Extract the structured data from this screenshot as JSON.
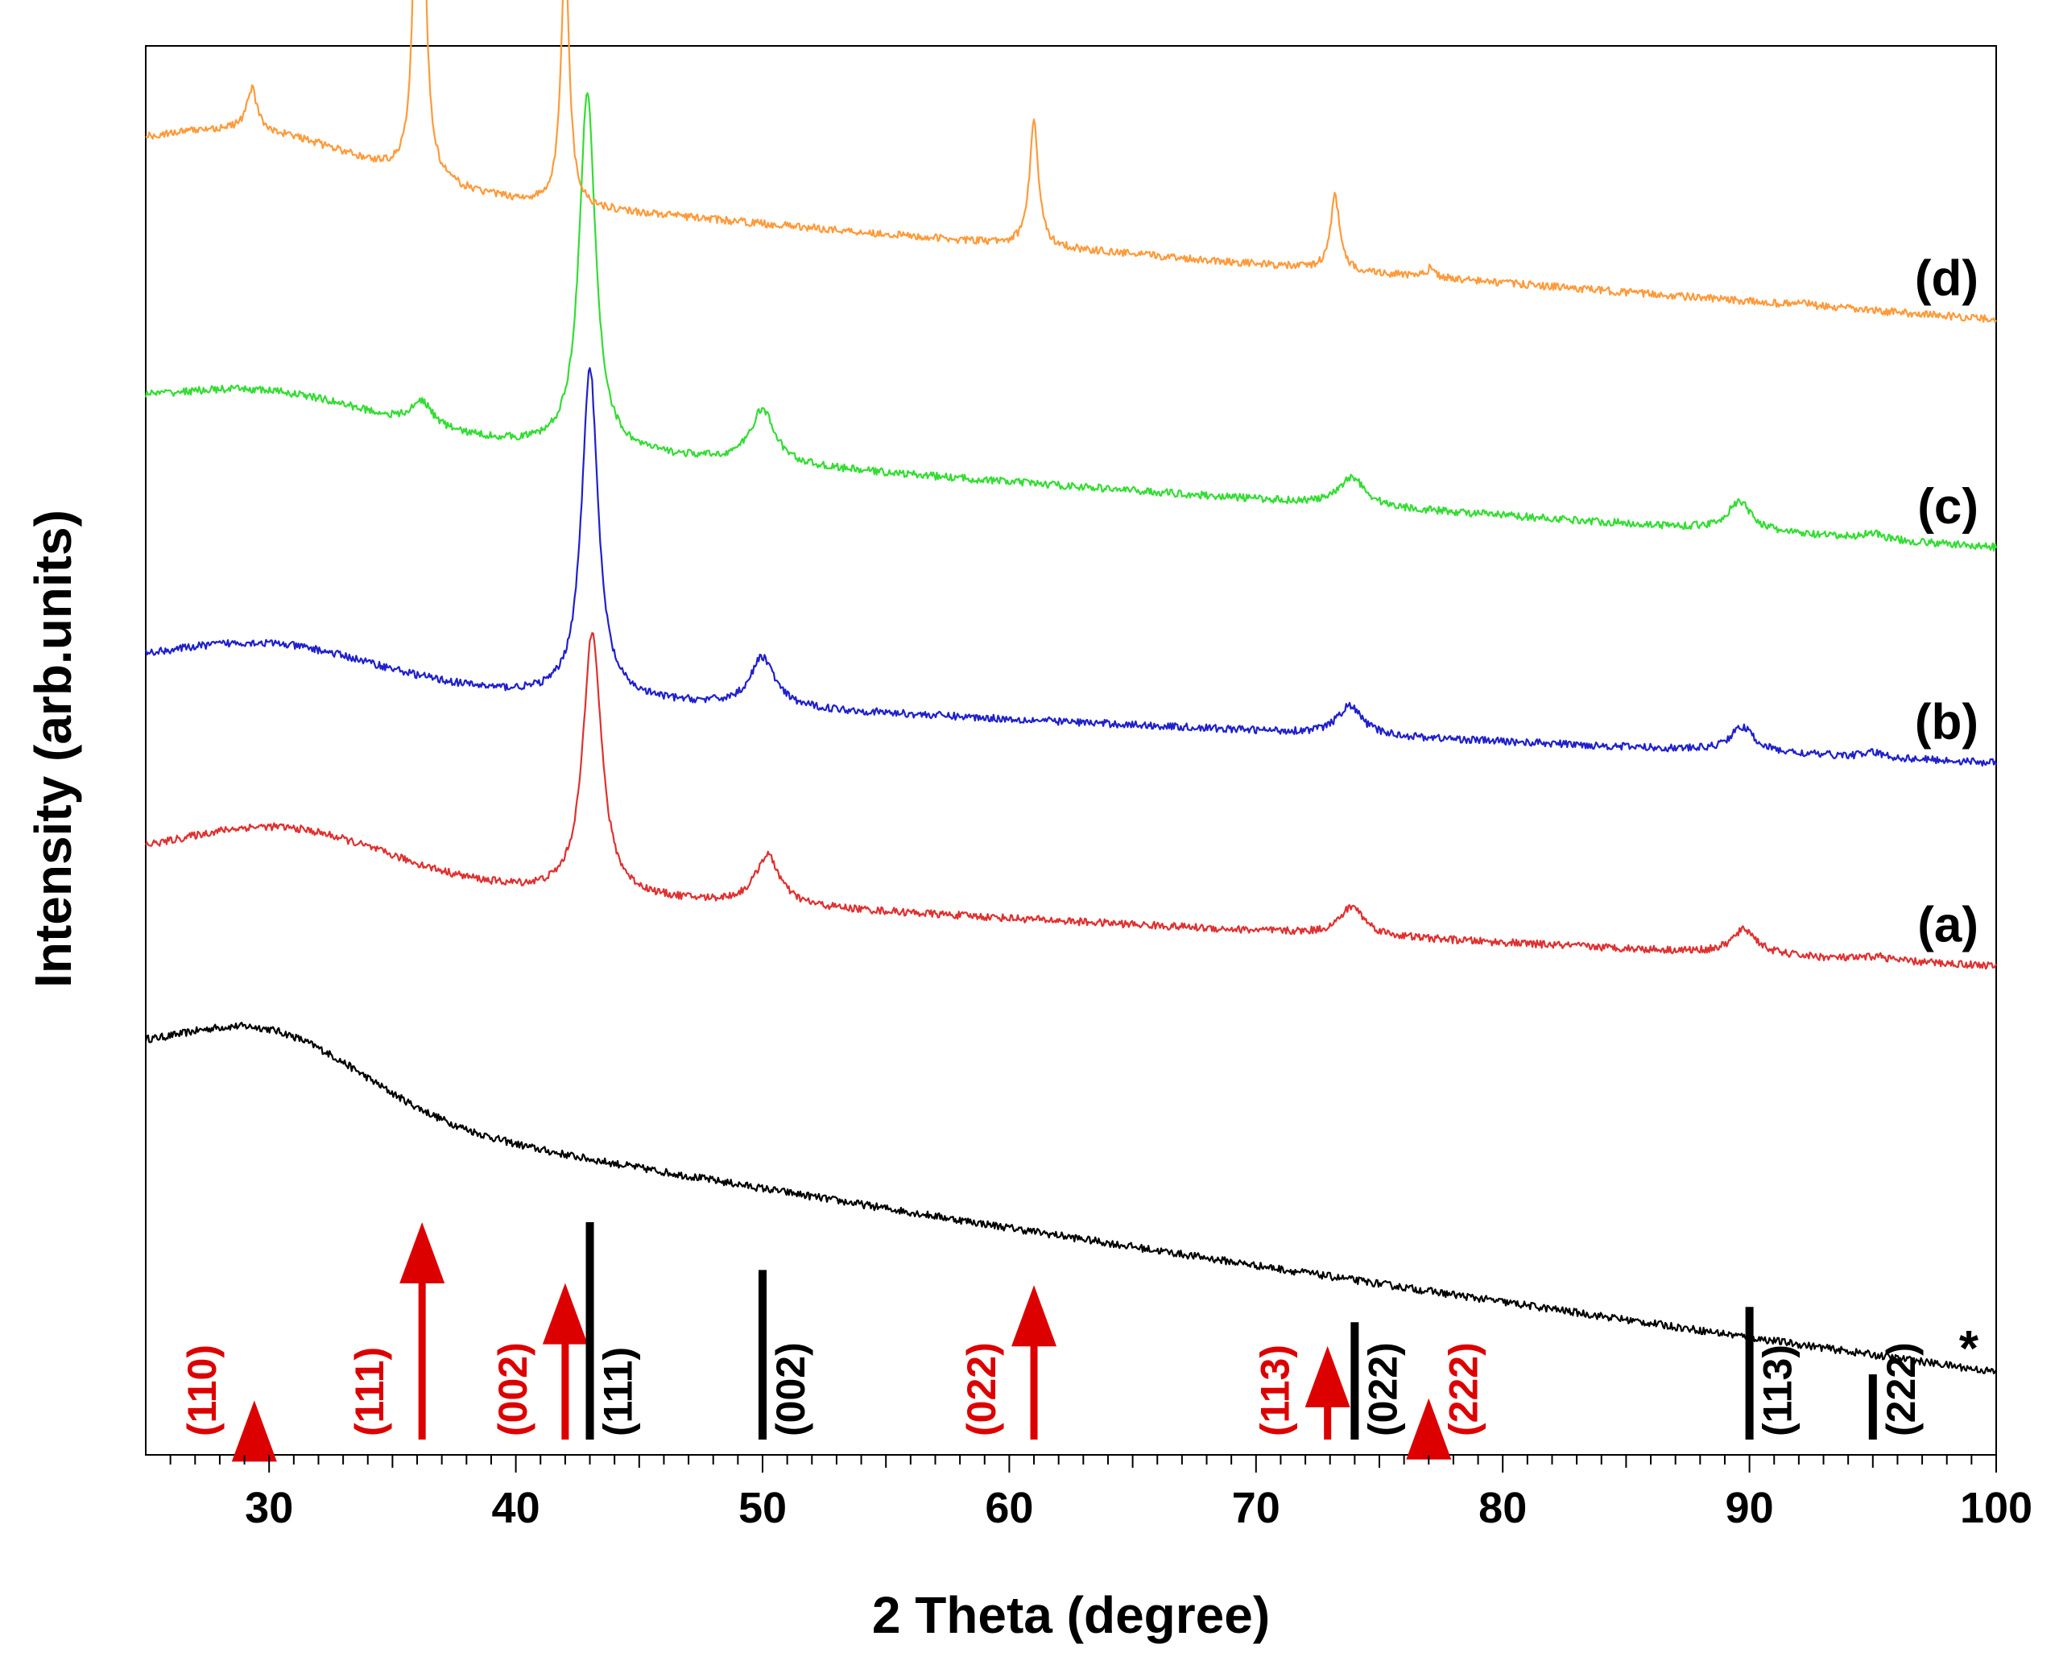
{
  "chart_data": {
    "type": "line",
    "title": "",
    "xlabel": "2 Theta (degree)",
    "ylabel": "Intensity (arb.units)",
    "xlim": [
      25,
      100
    ],
    "x_ticks": [
      30,
      40,
      50,
      60,
      70,
      80,
      90,
      100
    ],
    "x_tick_labels": [
      "30",
      "40",
      "50",
      "60",
      "70",
      "80",
      "90",
      "100"
    ],
    "y_ticks_shown": false,
    "grid": false,
    "colors": {
      "blank": "#000000",
      "a": "#e03030",
      "b": "#2020cc",
      "c": "#33dd33",
      "d": "#ff9a3a",
      "ref_red": "#dd0000",
      "ref_black": "#000000"
    },
    "series": [
      {
        "name": "*",
        "label": "*",
        "color_key": "blank",
        "baseline_start": 46.5,
        "baseline_end": 10.0,
        "hump": {
          "center": 30.0,
          "width": 5.5,
          "height": 8.5
        },
        "peaks": []
      },
      {
        "name": "(a)",
        "label": "(a)",
        "color_key": "a",
        "baseline_start": 71.0,
        "baseline_end": 59.0,
        "hump": {
          "center": 30.5,
          "width": 6.0,
          "height": 6.0
        },
        "peaks": [
          {
            "x": 43.1,
            "height": 32.0,
            "width": 0.45
          },
          {
            "x": 50.2,
            "height": 6.0,
            "width": 0.6
          },
          {
            "x": 73.9,
            "height": 3.5,
            "width": 0.6
          },
          {
            "x": 89.8,
            "height": 3.0,
            "width": 0.6
          },
          {
            "x": 95.2,
            "height": 0.5,
            "width": 0.5
          }
        ]
      },
      {
        "name": "(b)",
        "label": "(b)",
        "color_key": "b",
        "baseline_start": 94.5,
        "baseline_end": 83.5,
        "hump": {
          "center": 30.0,
          "width": 6.0,
          "height": 4.5
        },
        "peaks": [
          {
            "x": 43.0,
            "height": 40.0,
            "width": 0.4
          },
          {
            "x": 50.0,
            "height": 6.0,
            "width": 0.6
          },
          {
            "x": 73.8,
            "height": 3.5,
            "width": 0.6
          },
          {
            "x": 89.7,
            "height": 3.0,
            "width": 0.6
          },
          {
            "x": 95.0,
            "height": 0.6,
            "width": 0.5
          }
        ]
      },
      {
        "name": "(c)",
        "label": "(c)",
        "color_key": "c",
        "baseline_start": 126.0,
        "baseline_end": 109.5,
        "hump": {
          "center": 30.0,
          "width": 6.0,
          "height": 4.0
        },
        "peaks": [
          {
            "x": 36.2,
            "height": 3.0,
            "width": 0.5
          },
          {
            "x": 42.9,
            "height": 43.0,
            "width": 0.4
          },
          {
            "x": 50.0,
            "height": 6.5,
            "width": 0.6
          },
          {
            "x": 73.9,
            "height": 3.5,
            "width": 0.6
          },
          {
            "x": 89.6,
            "height": 3.5,
            "width": 0.6
          },
          {
            "x": 95.0,
            "height": 0.8,
            "width": 0.5
          }
        ]
      },
      {
        "name": "(d)",
        "label": "(d)",
        "color_key": "d",
        "baseline_start": 156.0,
        "baseline_end": 137.0,
        "hump": {
          "center": 29.5,
          "width": 6.0,
          "height": 5.5
        },
        "peaks": [
          {
            "x": 29.3,
            "height": 5.0,
            "width": 0.25
          },
          {
            "x": 36.1,
            "height": 100.0,
            "width": 0.15
          },
          {
            "x": 42.0,
            "height": 31.0,
            "width": 0.2
          },
          {
            "x": 61.0,
            "height": 15.0,
            "width": 0.22
          },
          {
            "x": 73.2,
            "height": 9.0,
            "width": 0.22
          },
          {
            "x": 77.1,
            "height": 1.2,
            "width": 0.2
          },
          {
            "x": 92.2,
            "height": 0.5,
            "width": 0.2
          }
        ]
      }
    ],
    "reference_red": [
      {
        "x": 29.4,
        "label": "(110)",
        "intensity": 0.18
      },
      {
        "x": 36.2,
        "label": "(111)",
        "intensity": 1.0
      },
      {
        "x": 42.0,
        "label": "(002)",
        "intensity": 0.72
      },
      {
        "x": 61.0,
        "label": "(022)",
        "intensity": 0.71
      },
      {
        "x": 72.9,
        "label": "(113)",
        "intensity": 0.43
      },
      {
        "x": 77.0,
        "label": "(222)",
        "intensity": 0.19
      }
    ],
    "reference_black": [
      {
        "x": 43.0,
        "label": "(111)",
        "intensity": 1.0
      },
      {
        "x": 50.0,
        "label": "(002)",
        "intensity": 0.78
      },
      {
        "x": 74.0,
        "label": "(022)",
        "intensity": 0.54
      },
      {
        "x": 90.0,
        "label": "(113)",
        "intensity": 0.61
      },
      {
        "x": 95.0,
        "label": "(222)",
        "intensity": 0.3
      }
    ]
  }
}
